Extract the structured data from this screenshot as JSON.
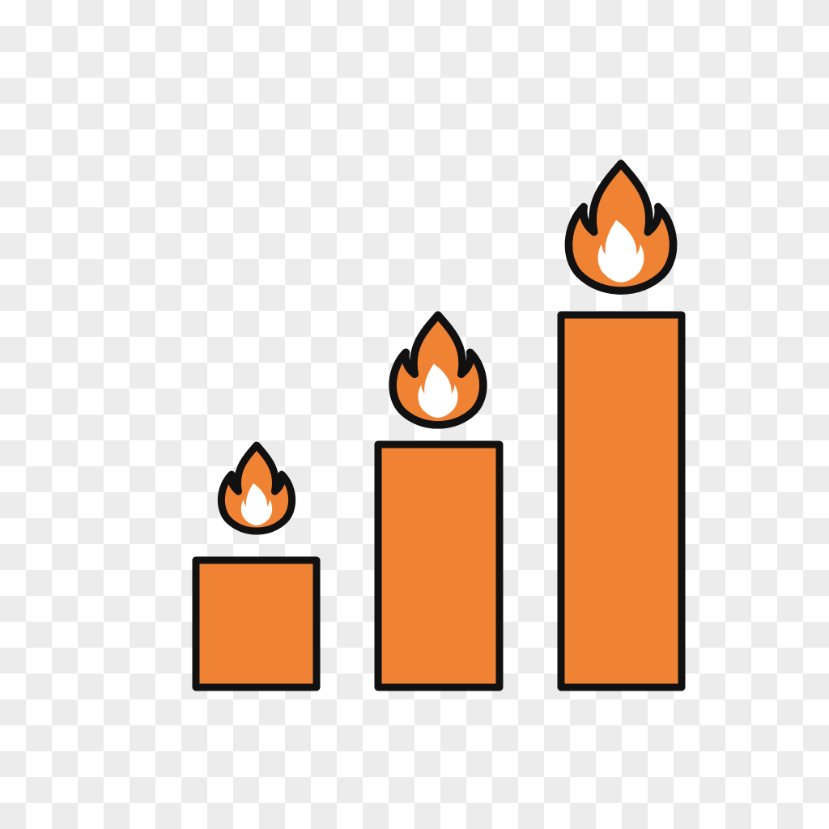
{
  "icon": {
    "name": "fire-bar-graph-icon",
    "colors": {
      "fill": "#f08233",
      "outline": "#111111",
      "inner_flame": "#ffffff"
    },
    "bars": [
      {
        "name": "bar-short",
        "level": 1
      },
      {
        "name": "bar-medium",
        "level": 2
      },
      {
        "name": "bar-tall",
        "level": 3
      }
    ]
  }
}
